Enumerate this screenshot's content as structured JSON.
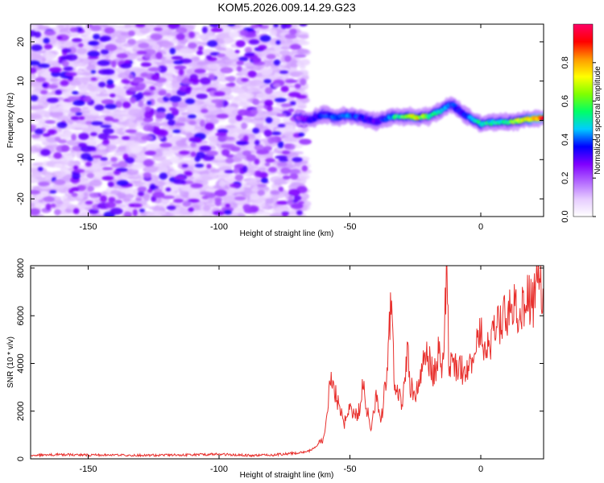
{
  "figure": {
    "title": "KOM5.2026.009.14.29.G23"
  },
  "chart_data": [
    {
      "type": "heatmap",
      "title": "KOM5.2026.009.14.29.G23",
      "xlabel": "Height of straight line (km)",
      "ylabel": "Frequency (Hz)",
      "xlim": [
        -172,
        24
      ],
      "ylim": [
        -24.5,
        24.5
      ],
      "xticks": [
        -150,
        -100,
        -50,
        0
      ],
      "xtick_labels": [
        "-150",
        "-100",
        "-50",
        "0"
      ],
      "yticks": [
        -20,
        -10,
        0,
        10,
        20
      ],
      "ytick_labels": [
        "-20",
        "-10",
        "0",
        "10",
        "20"
      ],
      "colorbar": {
        "label": "Normalized spectral amplitude",
        "range": [
          0,
          1
        ],
        "ticks": [
          0,
          0.2,
          0.4,
          0.6,
          0.8
        ],
        "tick_labels": [
          "0.0",
          "0.2",
          "0.4",
          "0.6",
          "0.8"
        ],
        "colors": [
          "#ffffff",
          "#e6ccff",
          "#b266ff",
          "#7f00ff",
          "#0000ff",
          "#00ccff",
          "#00ff66",
          "#80ff00",
          "#ffff00",
          "#ff9900",
          "#ff0000",
          "#ff0066"
        ]
      },
      "noise_region": {
        "x_range": [
          -172,
          -67
        ],
        "y_range": [
          -24.5,
          24.5
        ],
        "typical_amplitude": 0.08
      },
      "signal_ridge": {
        "x": [
          -70,
          -65,
          -60,
          -55,
          -50,
          -45,
          -40,
          -35,
          -30,
          -25,
          -20,
          -15,
          -12,
          -10,
          -8,
          -5,
          0,
          5,
          10,
          15,
          20,
          24
        ],
        "frequency": [
          0.5,
          0.2,
          1.5,
          0.8,
          1.2,
          0.6,
          -0.5,
          0.8,
          1.0,
          0.8,
          1.0,
          2.5,
          4.2,
          3.5,
          2.5,
          1.0,
          -1.0,
          -0.5,
          -0.5,
          0.0,
          0.5,
          0.5
        ],
        "amplitude": [
          0.2,
          0.3,
          0.35,
          0.38,
          0.4,
          0.35,
          0.3,
          0.4,
          0.6,
          0.75,
          0.55,
          0.45,
          0.4,
          0.35,
          0.35,
          0.4,
          0.5,
          0.5,
          0.55,
          0.65,
          0.8,
          0.85
        ]
      }
    },
    {
      "type": "line",
      "xlabel": "Height of straight line (km)",
      "ylabel": "SNR (10 * v/v)",
      "xlim": [
        -172,
        24
      ],
      "ylim": [
        0,
        8100
      ],
      "xticks": [
        -150,
        -100,
        -50,
        0
      ],
      "xtick_labels": [
        "-150",
        "-100",
        "-50",
        "0"
      ],
      "yticks": [
        0,
        2000,
        4000,
        6000,
        8000
      ],
      "ytick_labels": [
        "0",
        "2000",
        "4000",
        "6000",
        "8000"
      ],
      "series": [
        {
          "name": "SNR",
          "color": "#e8302d",
          "x": [
            -172,
            -160,
            -150,
            -140,
            -130,
            -120,
            -110,
            -100,
            -90,
            -80,
            -70,
            -65,
            -60,
            -57,
            -55,
            -52,
            -50,
            -47,
            -45,
            -42,
            -40,
            -38,
            -36,
            -35,
            -34,
            -33,
            -32,
            -30,
            -28,
            -27,
            -25,
            -22,
            -20,
            -18,
            -16,
            -15,
            -14,
            -13,
            -12,
            -11,
            -10,
            -8,
            -5,
            -3,
            -1,
            0,
            2,
            5,
            8,
            10,
            12,
            15,
            18,
            20,
            22,
            24
          ],
          "values": [
            150,
            180,
            160,
            170,
            150,
            160,
            170,
            200,
            150,
            160,
            250,
            350,
            800,
            3700,
            2500,
            1500,
            2200,
            1800,
            3000,
            1200,
            2500,
            1700,
            3500,
            5200,
            6900,
            3000,
            3200,
            2200,
            4800,
            3100,
            2800,
            4000,
            4300,
            3400,
            4500,
            3800,
            5100,
            8000,
            3200,
            4600,
            4000,
            3700,
            3800,
            3900,
            4900,
            5800,
            4300,
            5300,
            5700,
            6000,
            6400,
            6200,
            6800,
            6600,
            7300,
            7400
          ]
        }
      ]
    }
  ]
}
